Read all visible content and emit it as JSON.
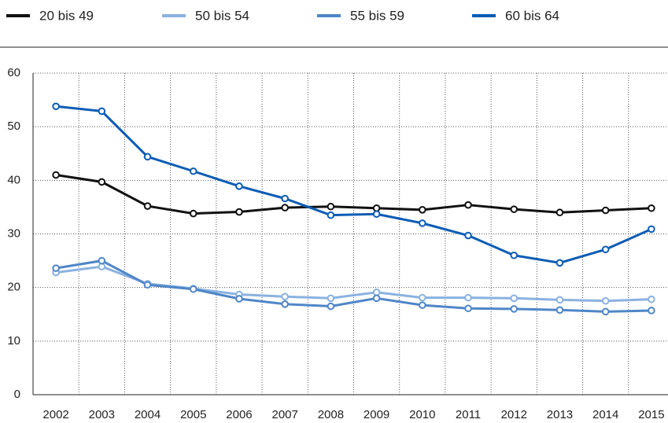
{
  "chart_data": {
    "type": "line",
    "categories": [
      "2002",
      "2003",
      "2004",
      "2005",
      "2006",
      "2007",
      "2008",
      "2009",
      "2010",
      "2011",
      "2012",
      "2013",
      "2014",
      "2015"
    ],
    "series": [
      {
        "name": "20 bis 49",
        "color": "#111111",
        "values": [
          41.0,
          39.7,
          35.2,
          33.8,
          34.1,
          34.9,
          35.1,
          34.8,
          34.5,
          35.4,
          34.6,
          34.0,
          34.4,
          34.8
        ]
      },
      {
        "name": "50 bis 54",
        "color": "#8ab2e0",
        "values": [
          22.8,
          23.9,
          20.7,
          19.8,
          18.7,
          18.3,
          18.0,
          19.1,
          18.1,
          18.1,
          18.0,
          17.7,
          17.5,
          17.8
        ]
      },
      {
        "name": "55 bis 59",
        "color": "#4f86c8",
        "values": [
          23.6,
          25.0,
          20.5,
          19.7,
          17.9,
          16.9,
          16.5,
          18.0,
          16.7,
          16.1,
          16.0,
          15.8,
          15.5,
          15.7
        ]
      },
      {
        "name": "60 bis 64",
        "color": "#0b5cb5",
        "values": [
          53.8,
          52.9,
          44.4,
          41.7,
          38.9,
          36.6,
          33.5,
          33.7,
          32.0,
          29.7,
          26.0,
          24.6,
          27.1,
          30.9
        ]
      }
    ],
    "ylim": [
      0,
      60
    ],
    "yticks": [
      0,
      10,
      20,
      30,
      40,
      50,
      60
    ],
    "grid": true
  }
}
